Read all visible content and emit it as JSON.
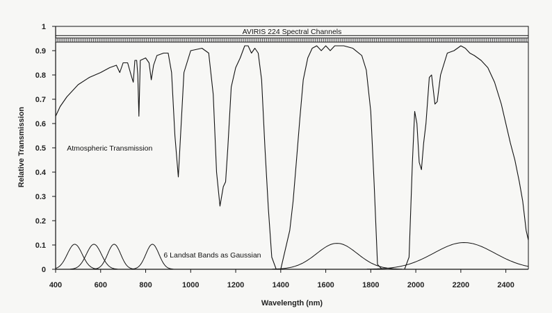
{
  "chart_data": {
    "type": "line",
    "xlabel": "Wavelength (nm)",
    "ylabel": "Relative Transmission",
    "xlim": [
      400,
      2500
    ],
    "ylim": [
      0,
      1
    ],
    "x_ticks": [
      400,
      600,
      800,
      1000,
      1200,
      1400,
      1600,
      1800,
      2000,
      2200,
      2400
    ],
    "y_ticks": [
      0,
      0.1,
      0.2,
      0.3,
      0.4,
      0.5,
      0.6,
      0.7,
      0.8,
      0.9,
      1
    ],
    "grid": false,
    "colors": {
      "line": "#111111",
      "background": "#f7f7f5"
    },
    "aviris_band": {
      "label": "AVIRIS 224 Spectral Channels",
      "x_range": [
        400,
        2500
      ],
      "y_range": [
        0.962,
        1.0
      ],
      "channels_y_range": [
        0.935,
        0.952
      ],
      "channel_count": 224
    },
    "annotations": [
      {
        "text": "Atmospheric Transmission",
        "x": 450,
        "y": 0.5
      },
      {
        "text": "6 Landsat Bands as Gaussian",
        "x": 880,
        "y": 0.06
      }
    ],
    "series": [
      {
        "name": "Atmospheric Transmission",
        "points": [
          [
            400,
            0.63
          ],
          [
            420,
            0.67
          ],
          [
            450,
            0.71
          ],
          [
            500,
            0.76
          ],
          [
            550,
            0.79
          ],
          [
            600,
            0.81
          ],
          [
            640,
            0.83
          ],
          [
            670,
            0.84
          ],
          [
            685,
            0.81
          ],
          [
            700,
            0.85
          ],
          [
            720,
            0.85
          ],
          [
            735,
            0.8
          ],
          [
            745,
            0.77
          ],
          [
            752,
            0.86
          ],
          [
            760,
            0.86
          ],
          [
            765,
            0.8
          ],
          [
            770,
            0.63
          ],
          [
            776,
            0.86
          ],
          [
            800,
            0.87
          ],
          [
            815,
            0.85
          ],
          [
            825,
            0.78
          ],
          [
            835,
            0.84
          ],
          [
            850,
            0.88
          ],
          [
            880,
            0.89
          ],
          [
            900,
            0.89
          ],
          [
            915,
            0.81
          ],
          [
            930,
            0.55
          ],
          [
            945,
            0.38
          ],
          [
            955,
            0.55
          ],
          [
            970,
            0.81
          ],
          [
            1000,
            0.9
          ],
          [
            1050,
            0.91
          ],
          [
            1080,
            0.89
          ],
          [
            1100,
            0.72
          ],
          [
            1115,
            0.4
          ],
          [
            1130,
            0.26
          ],
          [
            1145,
            0.34
          ],
          [
            1155,
            0.36
          ],
          [
            1165,
            0.5
          ],
          [
            1180,
            0.75
          ],
          [
            1200,
            0.83
          ],
          [
            1220,
            0.87
          ],
          [
            1240,
            0.92
          ],
          [
            1255,
            0.92
          ],
          [
            1270,
            0.89
          ],
          [
            1285,
            0.91
          ],
          [
            1300,
            0.89
          ],
          [
            1315,
            0.78
          ],
          [
            1330,
            0.5
          ],
          [
            1345,
            0.25
          ],
          [
            1360,
            0.05
          ],
          [
            1380,
            0.0
          ],
          [
            1400,
            0.0
          ],
          [
            1420,
            0.08
          ],
          [
            1440,
            0.16
          ],
          [
            1455,
            0.28
          ],
          [
            1470,
            0.45
          ],
          [
            1485,
            0.62
          ],
          [
            1500,
            0.78
          ],
          [
            1520,
            0.87
          ],
          [
            1540,
            0.91
          ],
          [
            1560,
            0.92
          ],
          [
            1580,
            0.9
          ],
          [
            1600,
            0.92
          ],
          [
            1620,
            0.9
          ],
          [
            1640,
            0.92
          ],
          [
            1680,
            0.92
          ],
          [
            1720,
            0.91
          ],
          [
            1760,
            0.88
          ],
          [
            1780,
            0.82
          ],
          [
            1800,
            0.65
          ],
          [
            1815,
            0.35
          ],
          [
            1830,
            0.02
          ],
          [
            1850,
            0.0
          ],
          [
            1950,
            0.0
          ],
          [
            1970,
            0.05
          ],
          [
            1985,
            0.44
          ],
          [
            1995,
            0.65
          ],
          [
            2005,
            0.6
          ],
          [
            2015,
            0.44
          ],
          [
            2025,
            0.41
          ],
          [
            2035,
            0.52
          ],
          [
            2045,
            0.6
          ],
          [
            2060,
            0.79
          ],
          [
            2070,
            0.8
          ],
          [
            2085,
            0.68
          ],
          [
            2095,
            0.69
          ],
          [
            2110,
            0.8
          ],
          [
            2140,
            0.89
          ],
          [
            2170,
            0.9
          ],
          [
            2200,
            0.92
          ],
          [
            2220,
            0.91
          ],
          [
            2240,
            0.89
          ],
          [
            2260,
            0.88
          ],
          [
            2290,
            0.86
          ],
          [
            2320,
            0.83
          ],
          [
            2350,
            0.77
          ],
          [
            2380,
            0.68
          ],
          [
            2400,
            0.6
          ],
          [
            2420,
            0.52
          ],
          [
            2440,
            0.45
          ],
          [
            2460,
            0.36
          ],
          [
            2475,
            0.28
          ],
          [
            2490,
            0.16
          ],
          [
            2500,
            0.12
          ]
        ]
      },
      {
        "name": "6 Landsat Bands as Gaussian",
        "gaussians": [
          {
            "center": 485,
            "sigma": 33,
            "peak": 0.103
          },
          {
            "center": 570,
            "sigma": 33,
            "peak": 0.103
          },
          {
            "center": 660,
            "sigma": 29,
            "peak": 0.103
          },
          {
            "center": 830,
            "sigma": 29,
            "peak": 0.103
          },
          {
            "center": 1650,
            "sigma": 90,
            "peak": 0.107
          },
          {
            "center": 2215,
            "sigma": 135,
            "peak": 0.11
          }
        ]
      }
    ]
  }
}
